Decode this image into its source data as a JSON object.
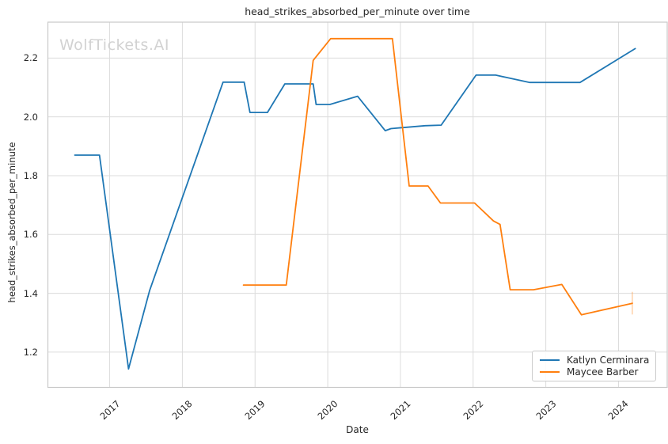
{
  "chart_data": {
    "type": "line",
    "title": "head_strikes_absorbed_per_minute over time",
    "xlabel": "Date",
    "ylabel": "head_strikes_absorbed_per_minute",
    "watermark": "WolfTickets.AI",
    "grid": true,
    "legend_position": "lower right",
    "x_ticks": [
      2017,
      2018,
      2019,
      2020,
      2021,
      2022,
      2023,
      2024
    ],
    "y_ticks": [
      1.2,
      1.4,
      1.6,
      1.8,
      2.0,
      2.2
    ],
    "x_range": [
      2016.15,
      2024.67
    ],
    "y_range": [
      1.08,
      2.322
    ],
    "series": [
      {
        "name": "Katlyn Cerminara",
        "color": "#1f77b4",
        "points": [
          [
            2016.52,
            1.87
          ],
          [
            2016.86,
            1.87
          ],
          [
            2017.26,
            1.143
          ],
          [
            2017.55,
            1.41
          ],
          [
            2018.56,
            2.118
          ],
          [
            2018.85,
            2.118
          ],
          [
            2018.93,
            2.015
          ],
          [
            2019.17,
            2.015
          ],
          [
            2019.41,
            2.112
          ],
          [
            2019.8,
            2.112
          ],
          [
            2019.84,
            2.042
          ],
          [
            2020.03,
            2.042
          ],
          [
            2020.41,
            2.07
          ],
          [
            2020.79,
            1.953
          ],
          [
            2020.87,
            1.96
          ],
          [
            2021.34,
            1.97
          ],
          [
            2021.56,
            1.972
          ],
          [
            2022.04,
            2.142
          ],
          [
            2022.31,
            2.142
          ],
          [
            2022.46,
            2.134
          ],
          [
            2022.78,
            2.117
          ],
          [
            2023.47,
            2.117
          ],
          [
            2024.23,
            2.232
          ]
        ]
      },
      {
        "name": "Maycee Barber",
        "color": "#ff7f0e",
        "points": [
          [
            2018.84,
            1.428
          ],
          [
            2019.43,
            1.428
          ],
          [
            2019.8,
            2.192
          ],
          [
            2020.04,
            2.266
          ],
          [
            2020.89,
            2.266
          ],
          [
            2021.12,
            1.765
          ],
          [
            2021.38,
            1.765
          ],
          [
            2021.55,
            1.707
          ],
          [
            2022.02,
            1.707
          ],
          [
            2022.28,
            1.646
          ],
          [
            2022.37,
            1.634
          ],
          [
            2022.51,
            1.412
          ],
          [
            2022.83,
            1.412
          ],
          [
            2023.22,
            1.43
          ],
          [
            2023.49,
            1.327
          ],
          [
            2024.19,
            1.366
          ]
        ],
        "end_marker": {
          "x": 2024.19,
          "y_low": 1.328,
          "y_high": 1.405
        }
      }
    ]
  },
  "style": {
    "background": "#ffffff",
    "grid_color": "#dcdcdc",
    "spine_color": "#c9c9c9",
    "text_color": "#262626",
    "watermark_color": "#d2d2d2",
    "legend_border_color": "#cccccc",
    "series_colors": [
      "#1f77b4",
      "#ff7f0e"
    ]
  }
}
